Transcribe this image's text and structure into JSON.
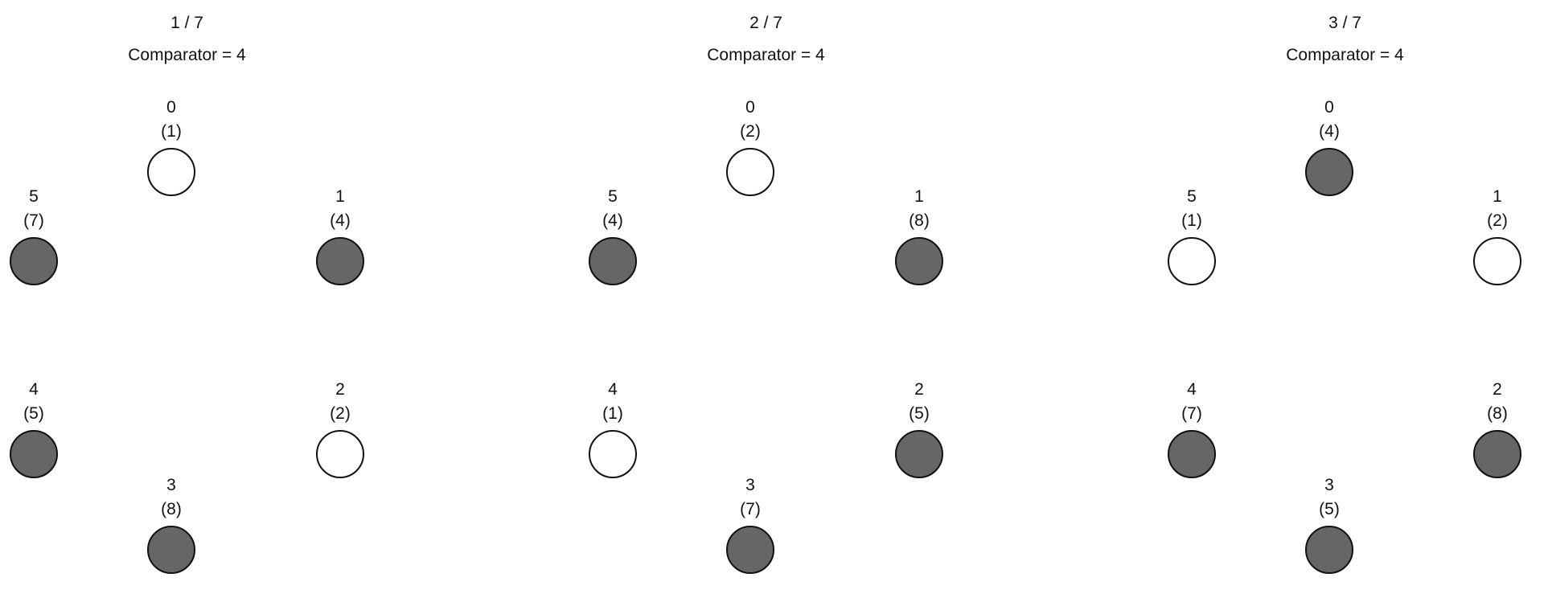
{
  "colors": {
    "filled": "#666666",
    "empty": "#ffffff",
    "stroke": "#111111"
  },
  "panels": [
    {
      "step": "1 / 7",
      "comparator": "Comparator = 4",
      "nodes": [
        {
          "index": "0",
          "value": "(1)",
          "filled": false
        },
        {
          "index": "1",
          "value": "(4)",
          "filled": true
        },
        {
          "index": "2",
          "value": "(2)",
          "filled": false
        },
        {
          "index": "3",
          "value": "(8)",
          "filled": true
        },
        {
          "index": "4",
          "value": "(5)",
          "filled": true
        },
        {
          "index": "5",
          "value": "(7)",
          "filled": true
        }
      ]
    },
    {
      "step": "2 / 7",
      "comparator": "Comparator = 4",
      "nodes": [
        {
          "index": "0",
          "value": "(2)",
          "filled": false
        },
        {
          "index": "1",
          "value": "(8)",
          "filled": true
        },
        {
          "index": "2",
          "value": "(5)",
          "filled": true
        },
        {
          "index": "3",
          "value": "(7)",
          "filled": true
        },
        {
          "index": "4",
          "value": "(1)",
          "filled": false
        },
        {
          "index": "5",
          "value": "(4)",
          "filled": true
        }
      ]
    },
    {
      "step": "3 / 7",
      "comparator": "Comparator = 4",
      "nodes": [
        {
          "index": "0",
          "value": "(4)",
          "filled": true
        },
        {
          "index": "1",
          "value": "(2)",
          "filled": false
        },
        {
          "index": "2",
          "value": "(8)",
          "filled": true
        },
        {
          "index": "3",
          "value": "(5)",
          "filled": true
        },
        {
          "index": "4",
          "value": "(7)",
          "filled": true
        },
        {
          "index": "5",
          "value": "(1)",
          "filled": false
        }
      ]
    }
  ]
}
